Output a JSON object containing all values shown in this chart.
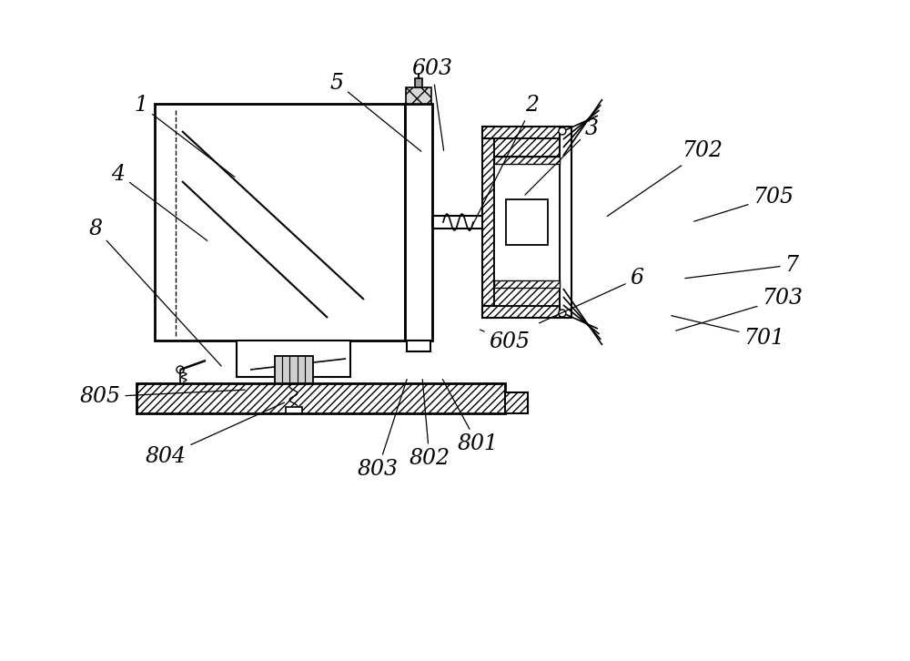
{
  "bg_color": "#ffffff",
  "line_color": "#000000",
  "label_color": "#000000",
  "figsize": [
    10.0,
    7.26
  ],
  "dpi": 100,
  "font_size": 17,
  "line_width": 1.5,
  "annotations": [
    [
      "1",
      1.55,
      6.1,
      2.6,
      5.3
    ],
    [
      "2",
      5.85,
      6.1,
      5.15,
      4.7
    ],
    [
      "3",
      6.5,
      5.85,
      5.75,
      5.1
    ],
    [
      "4",
      1.3,
      5.35,
      2.3,
      4.6
    ],
    [
      "5",
      3.7,
      6.35,
      4.65,
      5.58
    ],
    [
      "6",
      7.0,
      4.2,
      5.9,
      3.7
    ],
    [
      "7",
      8.7,
      4.35,
      7.5,
      4.2
    ],
    [
      "8",
      1.05,
      4.75,
      2.45,
      3.22
    ],
    [
      "603",
      4.75,
      6.5,
      4.88,
      5.58
    ],
    [
      "605",
      5.6,
      3.5,
      5.25,
      3.65
    ],
    [
      "701",
      8.4,
      3.55,
      7.35,
      3.8
    ],
    [
      "702",
      7.72,
      5.6,
      6.65,
      4.87
    ],
    [
      "703",
      8.6,
      3.98,
      7.4,
      3.62
    ],
    [
      "705",
      8.5,
      5.1,
      7.6,
      4.82
    ],
    [
      "801",
      5.25,
      2.38,
      4.85,
      3.12
    ],
    [
      "802",
      4.72,
      2.22,
      4.64,
      3.12
    ],
    [
      "803",
      4.15,
      2.1,
      4.48,
      3.12
    ],
    [
      "804",
      1.82,
      2.25,
      3.15,
      2.85
    ],
    [
      "805",
      1.1,
      2.9,
      2.72,
      2.98
    ]
  ]
}
